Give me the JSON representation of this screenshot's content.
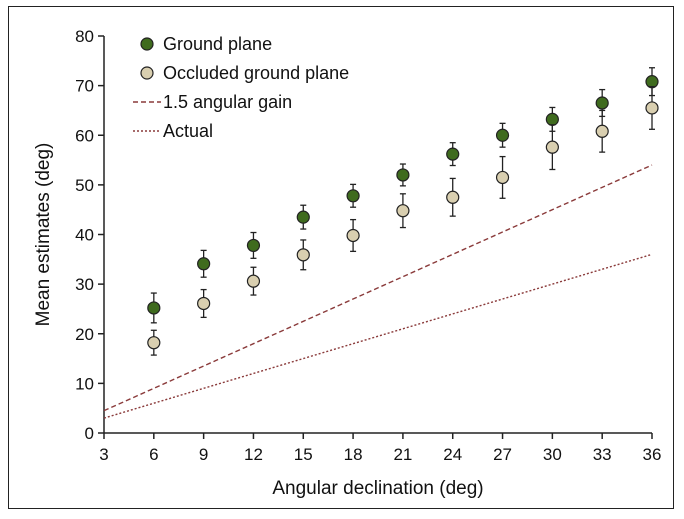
{
  "chart_data": {
    "type": "scatter",
    "xlabel": "Angular declination (deg)",
    "ylabel": "Mean estimates (deg)",
    "xlim": [
      3,
      36
    ],
    "ylim": [
      0,
      80
    ],
    "xticks": [
      3,
      6,
      9,
      12,
      15,
      18,
      21,
      24,
      27,
      30,
      33,
      36
    ],
    "yticks": [
      0,
      10,
      20,
      30,
      40,
      50,
      60,
      70,
      80
    ],
    "legend_position": "top-left",
    "grid": false,
    "series": [
      {
        "name": "Ground plane",
        "kind": "points",
        "color": "#3f6b1e",
        "x": [
          6,
          9,
          12,
          15,
          18,
          21,
          24,
          27,
          30,
          33,
          36
        ],
        "y": [
          25.2,
          34.1,
          37.8,
          43.5,
          47.8,
          52.0,
          56.2,
          60.0,
          63.2,
          66.5,
          70.8
        ],
        "err": [
          3.0,
          2.7,
          2.6,
          2.4,
          2.3,
          2.2,
          2.3,
          2.4,
          2.4,
          2.7,
          2.8
        ]
      },
      {
        "name": "Occluded ground plane",
        "kind": "points",
        "color": "#d9cfb0",
        "x": [
          6,
          9,
          12,
          15,
          18,
          21,
          24,
          27,
          30,
          33,
          36
        ],
        "y": [
          18.2,
          26.1,
          30.6,
          35.9,
          39.8,
          44.8,
          47.5,
          51.5,
          57.6,
          60.8,
          65.5
        ],
        "err": [
          2.5,
          2.8,
          2.8,
          3.0,
          3.2,
          3.4,
          3.8,
          4.2,
          4.5,
          4.2,
          4.3
        ]
      },
      {
        "name": "1.5 angular gain",
        "kind": "line",
        "dash": "dashed",
        "color": "#8a3a3a",
        "x": [
          3,
          36
        ],
        "y": [
          4.5,
          54
        ]
      },
      {
        "name": "Actual",
        "kind": "line",
        "dash": "dotted",
        "color": "#8a3a3a",
        "x": [
          3,
          36
        ],
        "y": [
          3,
          36
        ]
      }
    ]
  }
}
